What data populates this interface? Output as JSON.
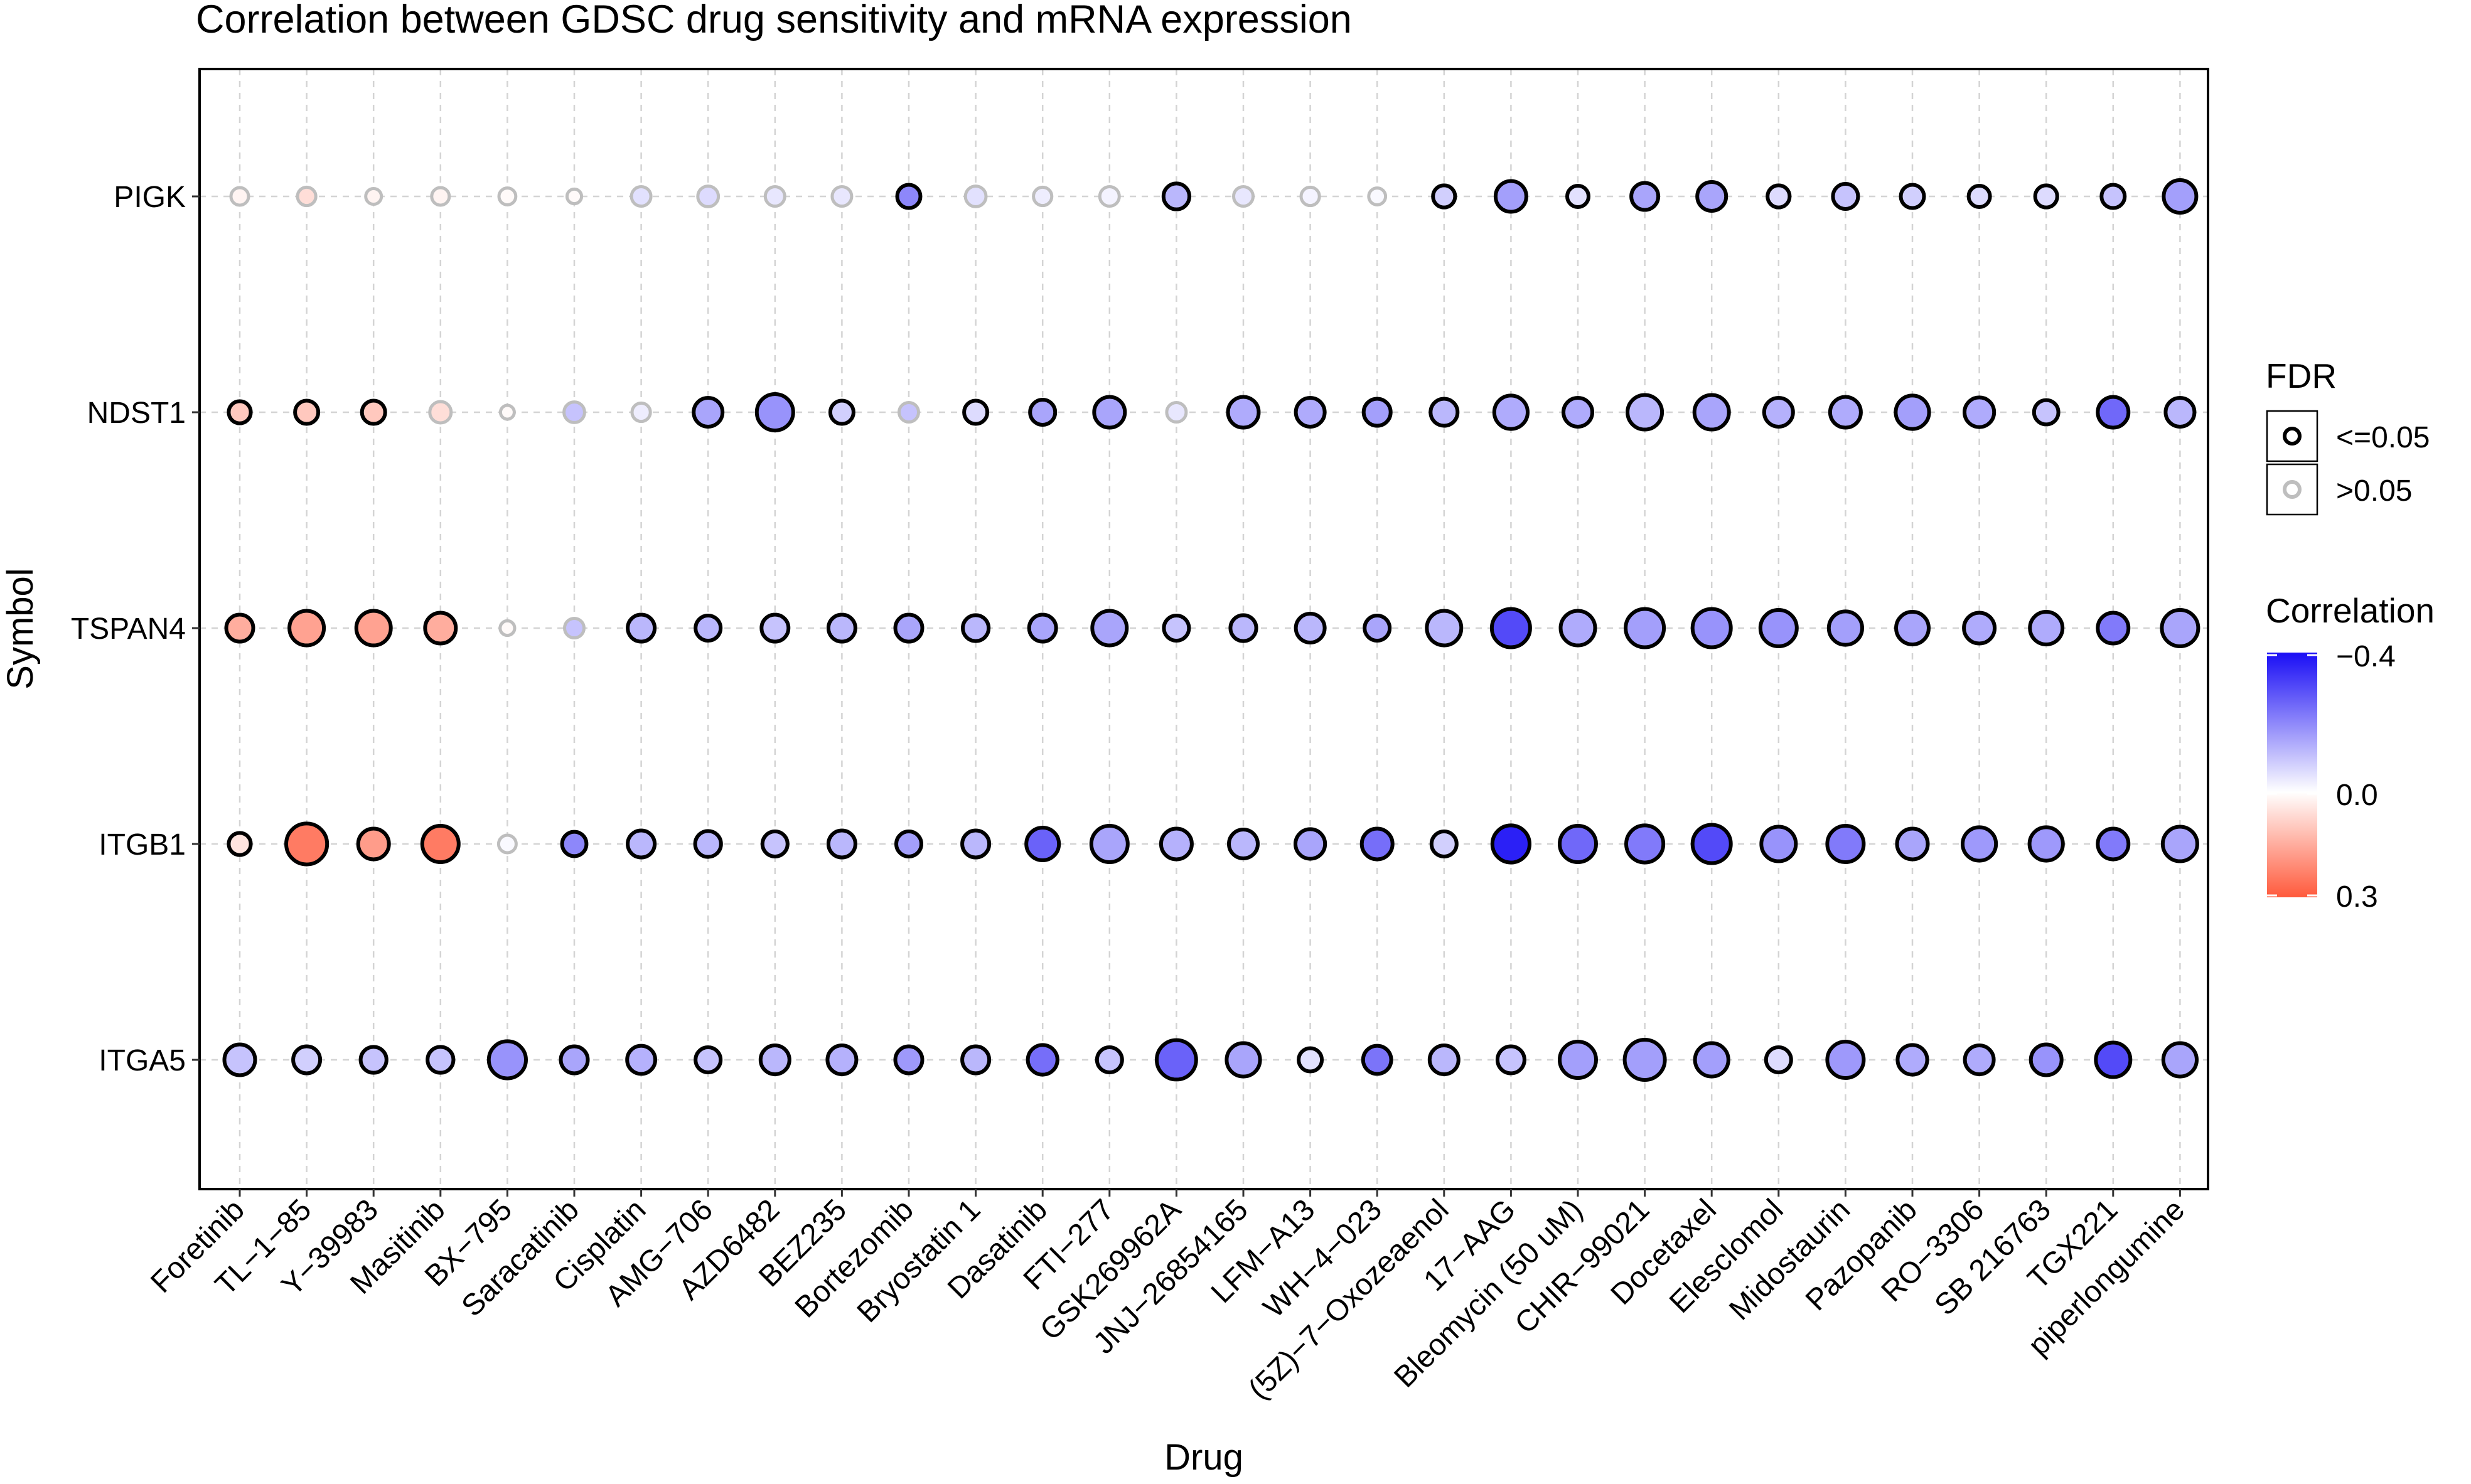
{
  "chart_data": {
    "type": "bubble",
    "title": "Correlation between GDSC drug sensitivity and mRNA expression",
    "xlabel": "Drug",
    "ylabel": "Symbol",
    "drugs": [
      "Foretinib",
      "TL-1-85",
      "Y-39983",
      "Masitinib",
      "BX-795",
      "Saracatinib",
      "Cisplatin",
      "AMG-706",
      "AZD6482",
      "BEZ235",
      "Bortezomib",
      "Bryostatin 1",
      "Dasatinib",
      "FTI-277",
      "GSK269962A",
      "JNJ-26854165",
      "LFM-A13",
      "WH-4-023",
      "(5Z)-7-Oxozeaenol",
      "17-AAG",
      "Bleomycin (50 uM)",
      "CHIR-99021",
      "Docetaxel",
      "Elesclomol",
      "Midostaurin",
      "Pazopanib",
      "RO-3306",
      "SB 216763",
      "TGX221",
      "piperlongumine"
    ],
    "drug_tick_labels": [
      "Foretinib",
      "TL−1−85",
      "Y−39983",
      "Masitinib",
      "BX−795",
      "Saracatinib",
      "Cisplatin",
      "AMG−706",
      "AZD6482",
      "BEZ235",
      "Bortezomib",
      "Bryostatin 1",
      "Dasatinib",
      "FTI−277",
      "GSK269962A",
      "JNJ−26854165",
      "LFM−A13",
      "WH−4−023",
      "(5Z)−7−Oxozeaenol",
      "17−AAG",
      "Bleomycin (50 uM)",
      "CHIR−99021",
      "Docetaxel",
      "Elesclomol",
      "Midostaurin",
      "Pazopanib",
      "RO−3306",
      "SB 216763",
      "TGX221",
      "piperlongumine"
    ],
    "symbols": [
      "PIGK",
      "NDST1",
      "TSPAN4",
      "ITGB1",
      "ITGA5"
    ],
    "correlation": [
      [
        0.02,
        0.06,
        0.02,
        0.02,
        0.01,
        0.01,
        -0.05,
        -0.06,
        -0.04,
        -0.04,
        -0.2,
        -0.05,
        -0.03,
        -0.02,
        -0.12,
        -0.04,
        -0.02,
        -0.01,
        -0.08,
        -0.16,
        -0.05,
        -0.15,
        -0.15,
        -0.06,
        -0.1,
        -0.08,
        -0.06,
        -0.06,
        -0.1,
        -0.16
      ],
      [
        0.1,
        0.1,
        0.1,
        0.06,
        0.01,
        -0.1,
        -0.03,
        -0.15,
        -0.18,
        -0.08,
        -0.1,
        -0.06,
        -0.15,
        -0.15,
        -0.04,
        -0.14,
        -0.14,
        -0.16,
        -0.12,
        -0.14,
        -0.14,
        -0.12,
        -0.15,
        -0.13,
        -0.14,
        -0.16,
        -0.14,
        -0.1,
        -0.25,
        -0.12
      ],
      [
        0.15,
        0.17,
        0.17,
        0.15,
        0.01,
        -0.1,
        -0.12,
        -0.12,
        -0.1,
        -0.12,
        -0.15,
        -0.12,
        -0.15,
        -0.15,
        -0.1,
        -0.12,
        -0.12,
        -0.15,
        -0.12,
        -0.3,
        -0.14,
        -0.16,
        -0.18,
        -0.18,
        -0.16,
        -0.15,
        -0.14,
        -0.14,
        -0.22,
        -0.15
      ],
      [
        0.05,
        0.24,
        0.18,
        0.24,
        -0.01,
        -0.2,
        -0.12,
        -0.12,
        -0.1,
        -0.12,
        -0.16,
        -0.12,
        -0.26,
        -0.15,
        -0.13,
        -0.12,
        -0.15,
        -0.24,
        -0.08,
        -0.37,
        -0.25,
        -0.22,
        -0.3,
        -0.18,
        -0.22,
        -0.15,
        -0.17,
        -0.17,
        -0.22,
        -0.15
      ],
      [
        -0.1,
        -0.08,
        -0.1,
        -0.1,
        -0.18,
        -0.15,
        -0.13,
        -0.1,
        -0.12,
        -0.13,
        -0.17,
        -0.12,
        -0.24,
        -0.1,
        -0.26,
        -0.15,
        -0.05,
        -0.23,
        -0.12,
        -0.1,
        -0.16,
        -0.16,
        -0.16,
        -0.06,
        -0.17,
        -0.14,
        -0.14,
        -0.18,
        -0.3,
        -0.15
      ]
    ],
    "size": [
      [
        0.2,
        0.22,
        0.15,
        0.2,
        0.18,
        0.12,
        0.25,
        0.28,
        0.25,
        0.25,
        0.35,
        0.28,
        0.22,
        0.25,
        0.42,
        0.25,
        0.22,
        0.18,
        0.32,
        0.55,
        0.3,
        0.45,
        0.5,
        0.32,
        0.4,
        0.35,
        0.3,
        0.32,
        0.35,
        0.6
      ],
      [
        0.32,
        0.35,
        0.35,
        0.3,
        0.1,
        0.28,
        0.22,
        0.5,
        0.7,
        0.35,
        0.25,
        0.35,
        0.4,
        0.55,
        0.25,
        0.55,
        0.5,
        0.45,
        0.45,
        0.62,
        0.5,
        0.65,
        0.65,
        0.5,
        0.55,
        0.62,
        0.52,
        0.38,
        0.55,
        0.5
      ],
      [
        0.45,
        0.65,
        0.65,
        0.55,
        0.12,
        0.25,
        0.45,
        0.4,
        0.45,
        0.45,
        0.45,
        0.42,
        0.45,
        0.65,
        0.4,
        0.42,
        0.5,
        0.4,
        0.65,
        0.75,
        0.65,
        0.75,
        0.75,
        0.7,
        0.62,
        0.6,
        0.55,
        0.6,
        0.55,
        0.7
      ],
      [
        0.32,
        0.82,
        0.55,
        0.7,
        0.2,
        0.38,
        0.45,
        0.42,
        0.4,
        0.45,
        0.4,
        0.45,
        0.6,
        0.7,
        0.55,
        0.5,
        0.52,
        0.55,
        0.4,
        0.72,
        0.7,
        0.72,
        0.75,
        0.65,
        0.7,
        0.55,
        0.62,
        0.62,
        0.55,
        0.65
      ],
      [
        0.55,
        0.45,
        0.42,
        0.42,
        0.72,
        0.45,
        0.48,
        0.4,
        0.5,
        0.5,
        0.45,
        0.45,
        0.52,
        0.4,
        0.78,
        0.62,
        0.35,
        0.48,
        0.5,
        0.45,
        0.7,
        0.8,
        0.62,
        0.4,
        0.7,
        0.52,
        0.5,
        0.55,
        0.65,
        0.62
      ]
    ],
    "fdr_significant": [
      [
        false,
        false,
        false,
        false,
        false,
        false,
        false,
        false,
        false,
        false,
        true,
        false,
        false,
        false,
        true,
        false,
        false,
        false,
        true,
        true,
        true,
        true,
        true,
        true,
        true,
        true,
        true,
        true,
        true,
        true
      ],
      [
        true,
        true,
        true,
        false,
        false,
        false,
        false,
        true,
        true,
        true,
        false,
        true,
        true,
        true,
        false,
        true,
        true,
        true,
        true,
        true,
        true,
        true,
        true,
        true,
        true,
        true,
        true,
        true,
        true,
        true
      ],
      [
        true,
        true,
        true,
        true,
        false,
        false,
        true,
        true,
        true,
        true,
        true,
        true,
        true,
        true,
        true,
        true,
        true,
        true,
        true,
        true,
        true,
        true,
        true,
        true,
        true,
        true,
        true,
        true,
        true,
        true
      ],
      [
        true,
        true,
        true,
        true,
        false,
        true,
        true,
        true,
        true,
        true,
        true,
        true,
        true,
        true,
        true,
        true,
        true,
        true,
        true,
        true,
        true,
        true,
        true,
        true,
        true,
        true,
        true,
        true,
        true,
        true
      ],
      [
        true,
        true,
        true,
        true,
        true,
        true,
        true,
        true,
        true,
        true,
        true,
        true,
        true,
        true,
        true,
        true,
        true,
        true,
        true,
        true,
        true,
        true,
        true,
        true,
        true,
        true,
        true,
        true,
        true,
        true
      ]
    ],
    "legend": {
      "fdr_title": "FDR",
      "fdr_items": [
        "<=0.05",
        ">0.05"
      ],
      "correlation_title": "Correlation",
      "correlation_ticks": [
        "−0.4",
        "0.0",
        "0.3"
      ],
      "correlation_range": [
        -0.4,
        0.3
      ]
    },
    "colors": {
      "negative": "#1A0EF5",
      "zero": "#FFFFFF",
      "positive": "#FF5A3C",
      "sig_stroke": "#000000",
      "nonsig_stroke": "#BEBEBE",
      "grid": "#D4D4D4",
      "panel_border": "#000000"
    }
  }
}
